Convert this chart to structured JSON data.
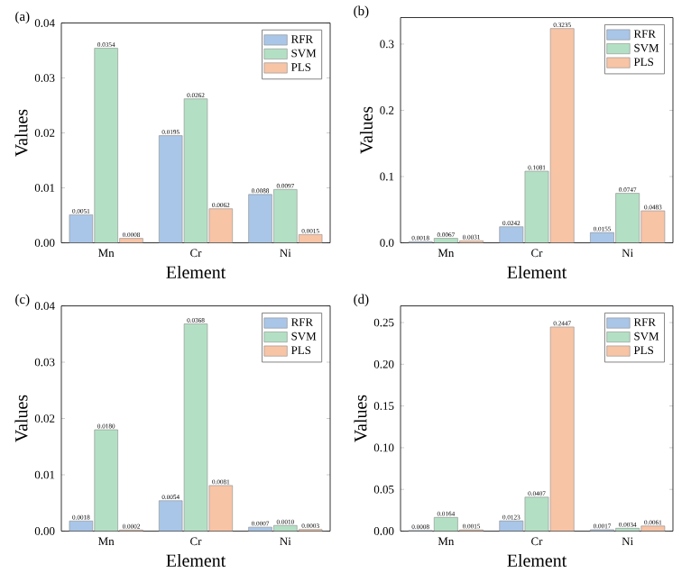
{
  "chart_data": [
    {
      "type": "bar",
      "title": "(a)",
      "xlabel": "Element",
      "ylabel": "Values",
      "categories": [
        "Mn",
        "Cr",
        "Ni"
      ],
      "legend": "top right",
      "ylim": [
        0,
        0.04
      ],
      "yticks": [
        {
          "value": 0,
          "label": "0.00"
        },
        {
          "value": 0.01,
          "label": "0.01"
        },
        {
          "value": 0.02,
          "label": "0.02"
        },
        {
          "value": 0.03,
          "label": "0.03"
        },
        {
          "value": 0.04,
          "label": "0.04"
        }
      ],
      "series": [
        {
          "name": "RFR",
          "color": "#a9c6e8",
          "values": [
            0.0051,
            0.0195,
            0.0088
          ],
          "value_labels": [
            "0.0051",
            "0.0195",
            "0.0088"
          ]
        },
        {
          "name": "SVM",
          "color": "#b3e0c4",
          "values": [
            0.0354,
            0.0262,
            0.0097
          ],
          "value_labels": [
            "0.0354",
            "0.0262",
            "0.0097"
          ]
        },
        {
          "name": "PLS",
          "color": "#f8c4a6",
          "values": [
            0.0008,
            0.0062,
            0.0015
          ],
          "value_labels": [
            "0.0008",
            "0.0062",
            "0.0015"
          ]
        }
      ]
    },
    {
      "type": "bar",
      "title": "(b)",
      "xlabel": "Element",
      "ylabel": "Values",
      "categories": [
        "Mn",
        "Cr",
        "Ni"
      ],
      "legend": "top right",
      "ylim": [
        0,
        0.34
      ],
      "yticks": [
        {
          "value": 0,
          "label": "0.0"
        },
        {
          "value": 0.1,
          "label": "0.1"
        },
        {
          "value": 0.2,
          "label": "0.2"
        },
        {
          "value": 0.3,
          "label": "0.3"
        }
      ],
      "series": [
        {
          "name": "RFR",
          "color": "#a9c6e8",
          "values": [
            0.0018,
            0.0242,
            0.0155
          ],
          "value_labels": [
            "0.0018",
            "0.0242",
            "0.0155"
          ]
        },
        {
          "name": "SVM",
          "color": "#b3e0c4",
          "values": [
            0.0067,
            0.1081,
            0.0747
          ],
          "value_labels": [
            "0.0067",
            "0.1081",
            "0.0747"
          ]
        },
        {
          "name": "PLS",
          "color": "#f8c4a6",
          "values": [
            0.0031,
            0.3235,
            0.0483
          ],
          "value_labels": [
            "0.0031",
            "0.3235",
            "0.0483"
          ]
        }
      ]
    },
    {
      "type": "bar",
      "title": "(c)",
      "xlabel": "Element",
      "ylabel": "Values",
      "categories": [
        "Mn",
        "Cr",
        "Ni"
      ],
      "legend": "top right",
      "ylim": [
        0,
        0.04
      ],
      "yticks": [
        {
          "value": 0,
          "label": "0.00"
        },
        {
          "value": 0.01,
          "label": "0.01"
        },
        {
          "value": 0.02,
          "label": "0.02"
        },
        {
          "value": 0.03,
          "label": "0.03"
        },
        {
          "value": 0.04,
          "label": "0.04"
        }
      ],
      "series": [
        {
          "name": "RFR",
          "color": "#a9c6e8",
          "values": [
            0.0018,
            0.0054,
            0.0007
          ],
          "value_labels": [
            "0.0018",
            "0.0054",
            "0.0007"
          ]
        },
        {
          "name": "SVM",
          "color": "#b3e0c4",
          "values": [
            0.018,
            0.0368,
            0.001
          ],
          "value_labels": [
            "0.0180",
            "0.0368",
            "0.0010"
          ]
        },
        {
          "name": "PLS",
          "color": "#f8c4a6",
          "values": [
            0.0002,
            0.0081,
            0.0003
          ],
          "value_labels": [
            "0.0002",
            "0.0081",
            "0.0003"
          ]
        }
      ]
    },
    {
      "type": "bar",
      "title": "(d)",
      "xlabel": "Element",
      "ylabel": "Values",
      "categories": [
        "Mn",
        "Cr",
        "Ni"
      ],
      "legend": "top right",
      "ylim": [
        0,
        0.27
      ],
      "yticks": [
        {
          "value": 0,
          "label": "0.00"
        },
        {
          "value": 0.05,
          "label": "0.05"
        },
        {
          "value": 0.1,
          "label": "0.10"
        },
        {
          "value": 0.15,
          "label": "0.15"
        },
        {
          "value": 0.2,
          "label": "0.20"
        },
        {
          "value": 0.25,
          "label": "0.25"
        }
      ],
      "series": [
        {
          "name": "RFR",
          "color": "#a9c6e8",
          "values": [
            0.0008,
            0.0123,
            0.0017
          ],
          "value_labels": [
            "0.0008",
            "0.0123",
            "0.0017"
          ]
        },
        {
          "name": "SVM",
          "color": "#b3e0c4",
          "values": [
            0.0164,
            0.0407,
            0.0034
          ],
          "value_labels": [
            "0.0164",
            "0.0407",
            "0.0034"
          ]
        },
        {
          "name": "PLS",
          "color": "#f8c4a6",
          "values": [
            0.0015,
            0.2447,
            0.0061
          ],
          "value_labels": [
            "0.0015",
            "0.2447",
            "0.0061"
          ]
        }
      ]
    }
  ]
}
